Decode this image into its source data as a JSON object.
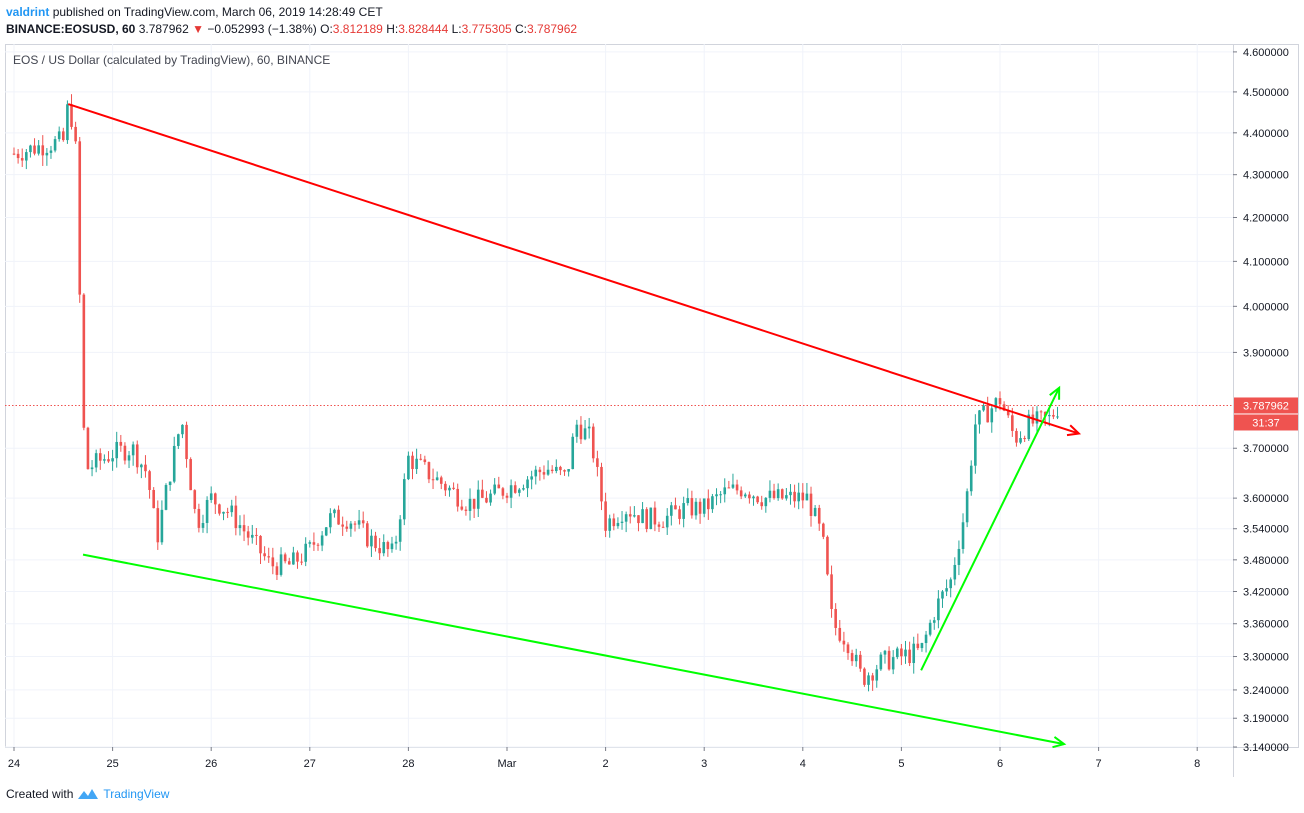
{
  "header": {
    "author": "valdrint",
    "published_text": "published on TradingView.com, March 06, 2019 14:28:49 CET",
    "symbol": "BINANCE:EOSUSD, 60",
    "last": "3.787962",
    "change_arrow": "▼",
    "change": "−0.052993 (−1.38%)",
    "o_label": "O:",
    "o_value": "3.812189",
    "h_label": "H:",
    "h_value": "3.828444",
    "l_label": "L:",
    "l_value": "3.775305",
    "c_label": "C:",
    "c_value": "3.787962"
  },
  "chart_title": "EOS / US Dollar (calculated by TradingView), 60, BINANCE",
  "price_badge": {
    "value": "3.787962",
    "countdown": "31:37"
  },
  "footer": {
    "created_with": "Created with",
    "brand": "TradingView",
    "icon": "tradingview-logo-icon"
  },
  "colors": {
    "up": "#26a69a",
    "down": "#ef5350",
    "resistance": "#ff0000",
    "support": "#00ff00",
    "price_line": "#ef5350"
  },
  "chart_data": {
    "type": "candlestick",
    "x_ticks": [
      "24",
      "25",
      "26",
      "27",
      "28",
      "Mar",
      "2",
      "3",
      "4",
      "5",
      "6",
      "7",
      "8"
    ],
    "y_ticks": [
      "4.600000",
      "4.500000",
      "4.400000",
      "4.300000",
      "4.200000",
      "4.100000",
      "4.000000",
      "3.900000",
      "3.787962",
      "3.700000",
      "3.600000",
      "3.540000",
      "3.480000",
      "3.420000",
      "3.360000",
      "3.300000",
      "3.240000",
      "3.190000",
      "3.140000"
    ],
    "scale": "log",
    "ylim": [
      3.14,
      4.62
    ],
    "xlim_days": [
      "2019-02-24",
      "2019-03-08"
    ],
    "last_price": 3.787962,
    "close_path_days_value": [
      [
        0.0,
        4.35
      ],
      [
        0.3,
        4.37
      ],
      [
        0.5,
        4.38
      ],
      [
        0.55,
        4.47
      ],
      [
        0.62,
        4.4
      ],
      [
        0.7,
        3.75
      ],
      [
        0.75,
        3.66
      ],
      [
        1.0,
        3.69
      ],
      [
        1.2,
        3.7
      ],
      [
        1.35,
        3.65
      ],
      [
        1.45,
        3.52
      ],
      [
        1.55,
        3.62
      ],
      [
        1.7,
        3.76
      ],
      [
        1.85,
        3.55
      ],
      [
        2.0,
        3.6
      ],
      [
        2.2,
        3.57
      ],
      [
        2.4,
        3.52
      ],
      [
        2.6,
        3.47
      ],
      [
        2.8,
        3.47
      ],
      [
        3.0,
        3.5
      ],
      [
        3.2,
        3.56
      ],
      [
        3.4,
        3.56
      ],
      [
        3.6,
        3.52
      ],
      [
        3.85,
        3.49
      ],
      [
        4.0,
        3.68
      ],
      [
        4.2,
        3.65
      ],
      [
        4.4,
        3.62
      ],
      [
        4.6,
        3.59
      ],
      [
        4.8,
        3.6
      ],
      [
        5.0,
        3.62
      ],
      [
        5.2,
        3.64
      ],
      [
        5.4,
        3.66
      ],
      [
        5.6,
        3.64
      ],
      [
        5.7,
        3.75
      ],
      [
        5.85,
        3.72
      ],
      [
        6.0,
        3.55
      ],
      [
        6.2,
        3.58
      ],
      [
        6.4,
        3.56
      ],
      [
        6.6,
        3.56
      ],
      [
        6.8,
        3.58
      ],
      [
        7.0,
        3.58
      ],
      [
        7.2,
        3.61
      ],
      [
        7.4,
        3.62
      ],
      [
        7.6,
        3.6
      ],
      [
        7.8,
        3.6
      ],
      [
        8.05,
        3.6
      ],
      [
        8.2,
        3.52
      ],
      [
        8.3,
        3.36
      ],
      [
        8.45,
        3.33
      ],
      [
        8.6,
        3.26
      ],
      [
        8.8,
        3.29
      ],
      [
        9.0,
        3.3
      ],
      [
        9.2,
        3.31
      ],
      [
        9.35,
        3.39
      ],
      [
        9.5,
        3.44
      ],
      [
        9.65,
        3.58
      ],
      [
        9.75,
        3.75
      ],
      [
        9.9,
        3.78
      ],
      [
        10.0,
        3.8
      ],
      [
        10.15,
        3.72
      ],
      [
        10.3,
        3.75
      ],
      [
        10.5,
        3.76
      ],
      [
        10.6,
        3.787962
      ]
    ],
    "trendlines": [
      {
        "name": "resistance",
        "from": [
          0.55,
          4.47
        ],
        "to": [
          10.8,
          3.73
        ],
        "arrow": true
      },
      {
        "name": "support",
        "from": [
          0.7,
          3.49
        ],
        "to": [
          10.65,
          3.145
        ],
        "arrow": true
      },
      {
        "name": "rally",
        "from": [
          9.2,
          3.275
        ],
        "to": [
          10.6,
          3.825
        ],
        "arrow": true
      }
    ]
  }
}
